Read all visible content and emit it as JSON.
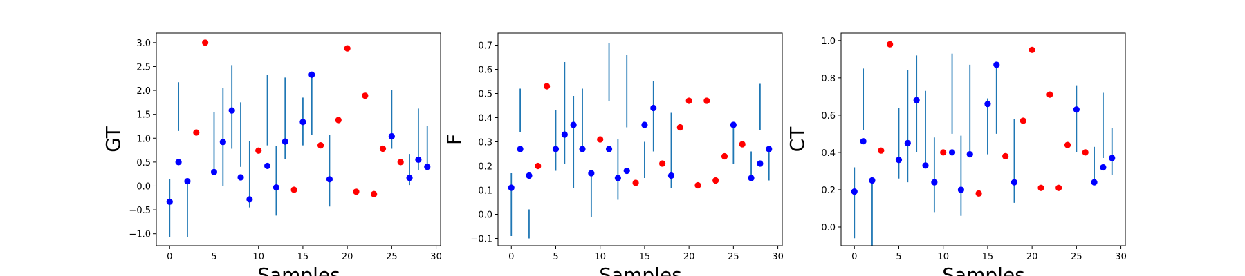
{
  "colors": {
    "in_interval": "#0000ff",
    "out_of_interval": "#ff0000",
    "error_bar": "#1f77b4",
    "axes": "#000000",
    "background": "#ffffff"
  },
  "chart_data": [
    {
      "type": "scatter",
      "ylabel": "GT",
      "xlabel": "Samples",
      "xlim": [
        -1.5,
        30.5
      ],
      "ylim": [
        -1.25,
        3.2
      ],
      "xticks": [
        0,
        5,
        10,
        15,
        20,
        25,
        30
      ],
      "yticks": [
        -1.0,
        -0.5,
        0.0,
        0.5,
        1.0,
        1.5,
        2.0,
        2.5,
        3.0
      ],
      "ytick_labels": [
        "−1.0",
        "−0.5",
        "0.0",
        "0.5",
        "1.0",
        "1.5",
        "2.0",
        "2.5",
        "3.0"
      ],
      "grid": false,
      "points": [
        {
          "x": 0,
          "y": -0.33,
          "lo": -1.07,
          "hi": 0.15
        },
        {
          "x": 1,
          "y": 0.5,
          "lo": 1.15,
          "hi": 2.17
        },
        {
          "x": 2,
          "y": 0.1,
          "lo": -1.07,
          "hi": 0.05
        },
        {
          "x": 3,
          "y": 1.12
        },
        {
          "x": 4,
          "y": 3.0
        },
        {
          "x": 5,
          "y": 0.29,
          "lo": 0.3,
          "hi": 1.55
        },
        {
          "x": 6,
          "y": 0.92,
          "lo": 0.0,
          "hi": 2.05
        },
        {
          "x": 7,
          "y": 1.58,
          "lo": 0.78,
          "hi": 2.53
        },
        {
          "x": 8,
          "y": 0.18,
          "lo": 0.4,
          "hi": 1.75
        },
        {
          "x": 9,
          "y": -0.28,
          "lo": -0.45,
          "hi": 0.94
        },
        {
          "x": 10,
          "y": 0.74
        },
        {
          "x": 11,
          "y": 0.42,
          "lo": 0.85,
          "hi": 2.33
        },
        {
          "x": 12,
          "y": -0.03,
          "lo": -0.62,
          "hi": 0.84
        },
        {
          "x": 13,
          "y": 0.93,
          "lo": 0.57,
          "hi": 2.27
        },
        {
          "x": 14,
          "y": -0.08
        },
        {
          "x": 15,
          "y": 1.34,
          "lo": 0.85,
          "hi": 1.85
        },
        {
          "x": 16,
          "y": 2.33,
          "lo": 1.07,
          "hi": 2.37
        },
        {
          "x": 17,
          "y": 0.85
        },
        {
          "x": 18,
          "y": 0.14,
          "lo": -0.43,
          "hi": 1.07
        },
        {
          "x": 19,
          "y": 1.38
        },
        {
          "x": 20,
          "y": 2.88
        },
        {
          "x": 21,
          "y": -0.12
        },
        {
          "x": 22,
          "y": 1.89
        },
        {
          "x": 23,
          "y": -0.17
        },
        {
          "x": 24,
          "y": 0.78
        },
        {
          "x": 25,
          "y": 1.04,
          "lo": 0.78,
          "hi": 2.0
        },
        {
          "x": 26,
          "y": 0.5
        },
        {
          "x": 27,
          "y": 0.17,
          "lo": 0.02,
          "hi": 0.67
        },
        {
          "x": 28,
          "y": 0.55,
          "lo": 0.33,
          "hi": 1.62
        },
        {
          "x": 29,
          "y": 0.4,
          "lo": 0.33,
          "hi": 1.25
        }
      ]
    },
    {
      "type": "scatter",
      "ylabel": "F",
      "xlabel": "Samples",
      "xlim": [
        -1.5,
        30.5
      ],
      "ylim": [
        -0.13,
        0.75
      ],
      "xticks": [
        0,
        5,
        10,
        15,
        20,
        25,
        30
      ],
      "yticks": [
        -0.1,
        0.0,
        0.1,
        0.2,
        0.3,
        0.4,
        0.5,
        0.6,
        0.7
      ],
      "ytick_labels": [
        "−0.1",
        "0.0",
        "0.1",
        "0.2",
        "0.3",
        "0.4",
        "0.5",
        "0.6",
        "0.7"
      ],
      "grid": false,
      "points": [
        {
          "x": 0,
          "y": 0.11,
          "lo": -0.09,
          "hi": 0.17
        },
        {
          "x": 1,
          "y": 0.27,
          "lo": 0.34,
          "hi": 0.52
        },
        {
          "x": 2,
          "y": 0.16,
          "lo": -0.1,
          "hi": 0.02
        },
        {
          "x": 3,
          "y": 0.2
        },
        {
          "x": 4,
          "y": 0.53
        },
        {
          "x": 5,
          "y": 0.27,
          "lo": 0.18,
          "hi": 0.43
        },
        {
          "x": 6,
          "y": 0.33,
          "lo": 0.21,
          "hi": 0.63
        },
        {
          "x": 7,
          "y": 0.37,
          "lo": 0.11,
          "hi": 0.49
        },
        {
          "x": 8,
          "y": 0.27,
          "lo": 0.27,
          "hi": 0.52
        },
        {
          "x": 9,
          "y": 0.17,
          "lo": -0.01,
          "hi": 0.17
        },
        {
          "x": 10,
          "y": 0.31
        },
        {
          "x": 11,
          "y": 0.27,
          "lo": 0.47,
          "hi": 0.71
        },
        {
          "x": 12,
          "y": 0.15,
          "lo": 0.06,
          "hi": 0.31
        },
        {
          "x": 13,
          "y": 0.18,
          "lo": 0.36,
          "hi": 0.66
        },
        {
          "x": 14,
          "y": 0.13
        },
        {
          "x": 15,
          "y": 0.37,
          "lo": 0.15,
          "hi": 0.3
        },
        {
          "x": 16,
          "y": 0.44,
          "lo": 0.26,
          "hi": 0.55
        },
        {
          "x": 17,
          "y": 0.21
        },
        {
          "x": 18,
          "y": 0.16,
          "lo": 0.11,
          "hi": 0.42
        },
        {
          "x": 19,
          "y": 0.36
        },
        {
          "x": 20,
          "y": 0.47
        },
        {
          "x": 21,
          "y": 0.12
        },
        {
          "x": 22,
          "y": 0.47
        },
        {
          "x": 23,
          "y": 0.14
        },
        {
          "x": 24,
          "y": 0.24
        },
        {
          "x": 25,
          "y": 0.37,
          "lo": 0.21,
          "hi": 0.37
        },
        {
          "x": 26,
          "y": 0.29
        },
        {
          "x": 27,
          "y": 0.15,
          "lo": 0.15,
          "hi": 0.26
        },
        {
          "x": 28,
          "y": 0.21,
          "lo": 0.35,
          "hi": 0.54
        },
        {
          "x": 29,
          "y": 0.27,
          "lo": 0.14,
          "hi": 0.27
        }
      ]
    },
    {
      "type": "scatter",
      "ylabel": "CT",
      "xlabel": "Samples",
      "xlim": [
        -1.5,
        30.5
      ],
      "ylim": [
        -0.1,
        1.04
      ],
      "xticks": [
        0,
        5,
        10,
        15,
        20,
        25,
        30
      ],
      "yticks": [
        0.0,
        0.2,
        0.4,
        0.6,
        0.8,
        1.0
      ],
      "ytick_labels": [
        "0.0",
        "0.2",
        "0.4",
        "0.6",
        "0.8",
        "1.0"
      ],
      "grid": false,
      "points": [
        {
          "x": 0,
          "y": 0.19,
          "lo": -0.06,
          "hi": 0.32
        },
        {
          "x": 1,
          "y": 0.46,
          "lo": 0.52,
          "hi": 0.85
        },
        {
          "x": 2,
          "y": 0.25,
          "lo": -0.1,
          "hi": 0.25
        },
        {
          "x": 3,
          "y": 0.41
        },
        {
          "x": 4,
          "y": 0.98
        },
        {
          "x": 5,
          "y": 0.36,
          "lo": 0.26,
          "hi": 0.64
        },
        {
          "x": 6,
          "y": 0.45,
          "lo": 0.24,
          "hi": 0.84
        },
        {
          "x": 7,
          "y": 0.68,
          "lo": 0.4,
          "hi": 0.92
        },
        {
          "x": 8,
          "y": 0.33,
          "lo": 0.32,
          "hi": 0.73
        },
        {
          "x": 9,
          "y": 0.24,
          "lo": 0.08,
          "hi": 0.48
        },
        {
          "x": 10,
          "y": 0.4
        },
        {
          "x": 11,
          "y": 0.4,
          "lo": 0.5,
          "hi": 0.93
        },
        {
          "x": 12,
          "y": 0.2,
          "lo": 0.06,
          "hi": 0.49
        },
        {
          "x": 13,
          "y": 0.39,
          "lo": 0.39,
          "hi": 0.87
        },
        {
          "x": 14,
          "y": 0.18
        },
        {
          "x": 15,
          "y": 0.66,
          "lo": 0.39,
          "hi": 0.69
        },
        {
          "x": 16,
          "y": 0.87,
          "lo": 0.5,
          "hi": 0.88
        },
        {
          "x": 17,
          "y": 0.38
        },
        {
          "x": 18,
          "y": 0.24,
          "lo": 0.13,
          "hi": 0.58
        },
        {
          "x": 19,
          "y": 0.57
        },
        {
          "x": 20,
          "y": 0.95
        },
        {
          "x": 21,
          "y": 0.21
        },
        {
          "x": 22,
          "y": 0.71
        },
        {
          "x": 23,
          "y": 0.21
        },
        {
          "x": 24,
          "y": 0.44
        },
        {
          "x": 25,
          "y": 0.63,
          "lo": 0.4,
          "hi": 0.76
        },
        {
          "x": 26,
          "y": 0.4
        },
        {
          "x": 27,
          "y": 0.24,
          "lo": 0.24,
          "hi": 0.43
        },
        {
          "x": 28,
          "y": 0.32,
          "lo": 0.37,
          "hi": 0.72
        },
        {
          "x": 29,
          "y": 0.37,
          "lo": 0.28,
          "hi": 0.53
        }
      ]
    }
  ]
}
